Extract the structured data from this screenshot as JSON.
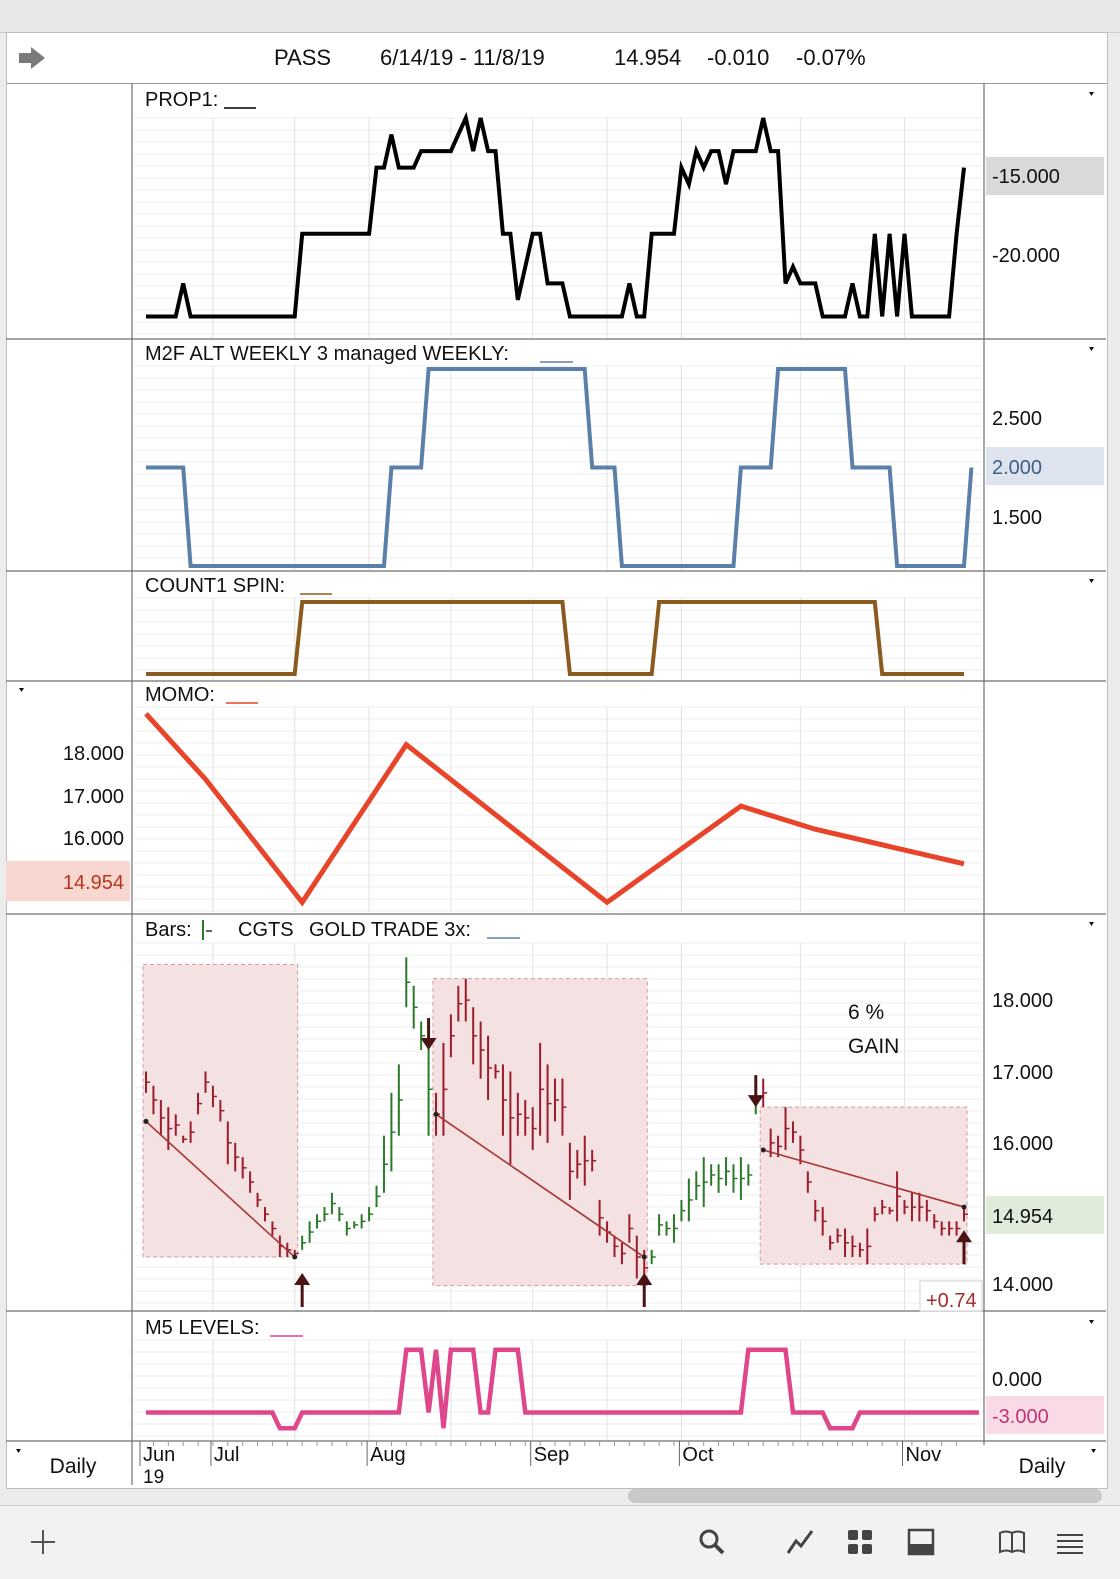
{
  "header": {
    "symbol": "PASS",
    "date_range": "6/14/19 - 11/8/19",
    "last": "14.954",
    "change": "-0.010",
    "change_pct": "-0.07%"
  },
  "footer": {
    "left_period": "Daily",
    "right_period": "Daily",
    "months": [
      "Jun",
      "Jul",
      "Aug",
      "Sep",
      "Oct",
      "Nov"
    ],
    "year": "19"
  },
  "toolbar_icons": [
    "add-icon",
    "search-icon",
    "line-chart-icon",
    "grid-layout-icon",
    "panel-icon",
    "book-icon",
    "list-icon"
  ],
  "colors": {
    "prop1": "#000000",
    "m2f": "#5a7fa8",
    "count1": "#8b5a1f",
    "momo": "#e8442a",
    "bars_up": "#2a7a2a",
    "bars_down": "#9b1c2c",
    "m5": "#e0468c",
    "shade": "#f4e1e1"
  },
  "panels": {
    "prop1": {
      "label": "PROP1:",
      "ticks": [
        "-15.000",
        "-20.000"
      ],
      "value_badge": "-15.000"
    },
    "m2f": {
      "label": "M2F ALT WEEKLY 3 managed WEEKLY:",
      "ticks": [
        "2.500",
        "2.000",
        "1.500"
      ],
      "value_badge": "2.000"
    },
    "count1": {
      "label": "COUNT1 SPIN:"
    },
    "momo": {
      "label": "MOMO:",
      "ticks": [
        "18.000",
        "17.000",
        "16.000"
      ],
      "value_badge": "14.954"
    },
    "bars": {
      "label_prefix": "Bars:",
      "label_symbol": "CGTS",
      "label_name": "GOLD TRADE 3x:",
      "ticks": [
        "18.000",
        "17.000",
        "16.000",
        "14.000"
      ],
      "value_badge": "14.954",
      "annotation_line1": "6 %",
      "annotation_line2": "GAIN",
      "gain_badge": "+0.74"
    },
    "m5": {
      "label": "M5 LEVELS:",
      "ticks": [
        "0.000"
      ],
      "value_badge": "-3.000"
    }
  },
  "chart_data": [
    {
      "type": "line",
      "name": "PROP1",
      "ylim": [
        -25,
        -12
      ],
      "values": [
        -24,
        -24,
        -24,
        -24,
        -24,
        -22,
        -24,
        -24,
        -24,
        -24,
        -24,
        -24,
        -24,
        -24,
        -24,
        -24,
        -24,
        -24,
        -24,
        -24,
        -24,
        -19,
        -19,
        -19,
        -19,
        -19,
        -19,
        -19,
        -19,
        -19,
        -19,
        -15,
        -15,
        -13,
        -15,
        -15,
        -15,
        -14,
        -14,
        -14,
        -14,
        -14,
        -13,
        -12,
        -14,
        -12,
        -14,
        -14,
        -19,
        -19,
        -23,
        -21,
        -19,
        -19,
        -22,
        -22,
        -22,
        -24,
        -24,
        -24,
        -24,
        -24,
        -24,
        -24,
        -24,
        -22,
        -24,
        -24,
        -19,
        -19,
        -19,
        -19,
        -15,
        -16,
        -14,
        -15,
        -14,
        -14,
        -16,
        -14,
        -14,
        -14,
        -14,
        -12,
        -14,
        -14,
        -22,
        -21,
        -22,
        -22,
        -22,
        -24,
        -24,
        -24,
        -24,
        -22,
        -24,
        -24,
        -19,
        -24,
        -19,
        -24,
        -19,
        -24,
        -24,
        -24,
        -24,
        -24,
        -24,
        -19,
        -15
      ]
    },
    {
      "type": "line",
      "name": "M2F ALT WEEKLY 3 managed WEEKLY",
      "ylim": [
        1.0,
        3.0
      ],
      "values": [
        2,
        2,
        2,
        2,
        2,
        2,
        1,
        1,
        1,
        1,
        1,
        1,
        1,
        1,
        1,
        1,
        1,
        1,
        1,
        1,
        1,
        1,
        1,
        1,
        1,
        1,
        1,
        1,
        1,
        1,
        1,
        1,
        1,
        2,
        2,
        2,
        2,
        2,
        3,
        3,
        3,
        3,
        3,
        3,
        3,
        3,
        3,
        3,
        3,
        3,
        3,
        3,
        3,
        3,
        3,
        3,
        3,
        3,
        3,
        3,
        2,
        2,
        2,
        2,
        1,
        1,
        1,
        1,
        1,
        1,
        1,
        1,
        1,
        1,
        1,
        1,
        1,
        1,
        1,
        1,
        2,
        2,
        2,
        2,
        2,
        3,
        3,
        3,
        3,
        3,
        3,
        3,
        3,
        3,
        3,
        2,
        2,
        2,
        2,
        2,
        2,
        1,
        1,
        1,
        1,
        1,
        1,
        1,
        1,
        1,
        1,
        2
      ]
    },
    {
      "type": "line",
      "name": "COUNT1 SPIN",
      "ylim": [
        0,
        1
      ],
      "values": [
        0,
        0,
        0,
        0,
        0,
        0,
        0,
        0,
        0,
        0,
        0,
        0,
        0,
        0,
        0,
        0,
        0,
        0,
        0,
        0,
        0,
        1,
        1,
        1,
        1,
        1,
        1,
        1,
        1,
        1,
        1,
        1,
        1,
        1,
        1,
        1,
        1,
        1,
        1,
        1,
        1,
        1,
        1,
        1,
        1,
        1,
        1,
        1,
        1,
        1,
        1,
        1,
        1,
        1,
        1,
        1,
        1,
        0,
        0,
        0,
        0,
        0,
        0,
        0,
        0,
        0,
        0,
        0,
        0,
        1,
        1,
        1,
        1,
        1,
        1,
        1,
        1,
        1,
        1,
        1,
        1,
        1,
        1,
        1,
        1,
        1,
        1,
        1,
        1,
        1,
        1,
        1,
        1,
        1,
        1,
        1,
        1,
        1,
        1,
        0,
        0,
        0,
        0,
        0,
        0,
        0,
        0,
        0,
        0,
        0,
        0
      ]
    },
    {
      "type": "line",
      "name": "MOMO",
      "ylim": [
        13.8,
        19.0
      ],
      "x": [
        0,
        8,
        21,
        35,
        62,
        80,
        90,
        110
      ],
      "values": [
        18.9,
        17.2,
        14.0,
        18.1,
        14.0,
        16.5,
        15.9,
        15.0
      ]
    },
    {
      "type": "bar",
      "name": "CGTS GOLD TRADE 3x",
      "ylim": [
        13.6,
        18.7
      ],
      "bars": [
        [
          0,
          16.9,
          16.6,
          1
        ],
        [
          1,
          16.7,
          16.3,
          1
        ],
        [
          2,
          16.5,
          16.0,
          1
        ],
        [
          3,
          16.4,
          15.8,
          1
        ],
        [
          4,
          16.3,
          16.0,
          1
        ],
        [
          5,
          16.0,
          15.9,
          1
        ],
        [
          6,
          16.2,
          15.9,
          1
        ],
        [
          7,
          16.6,
          16.3,
          1
        ],
        [
          8,
          16.9,
          16.6,
          1
        ],
        [
          9,
          16.7,
          16.4,
          1
        ],
        [
          10,
          16.5,
          16.2,
          1
        ],
        [
          11,
          16.2,
          15.6,
          1
        ],
        [
          12,
          15.9,
          15.5,
          1
        ],
        [
          13,
          15.7,
          15.4,
          1
        ],
        [
          14,
          15.5,
          15.2,
          1
        ],
        [
          15,
          15.2,
          15.0,
          1
        ],
        [
          16,
          15.0,
          14.8,
          1
        ],
        [
          17,
          14.8,
          14.6,
          1
        ],
        [
          18,
          14.6,
          14.3,
          1
        ],
        [
          19,
          14.5,
          14.3,
          1
        ],
        [
          20,
          14.4,
          14.3,
          1
        ],
        [
          21,
          14.6,
          14.4,
          0
        ],
        [
          22,
          14.8,
          14.5,
          0
        ],
        [
          23,
          14.9,
          14.7,
          0
        ],
        [
          24,
          15.0,
          14.8,
          0
        ],
        [
          25,
          15.2,
          14.9,
          0
        ],
        [
          26,
          15.0,
          14.8,
          0
        ],
        [
          27,
          14.8,
          14.6,
          0
        ],
        [
          28,
          14.8,
          14.7,
          0
        ],
        [
          29,
          14.9,
          14.7,
          0
        ],
        [
          30,
          15.0,
          14.8,
          0
        ],
        [
          31,
          15.3,
          15.0,
          0
        ],
        [
          32,
          16.0,
          15.2,
          0
        ],
        [
          33,
          16.6,
          15.5,
          0
        ],
        [
          34,
          17.0,
          16.0,
          0
        ],
        [
          35,
          18.5,
          17.8,
          0
        ],
        [
          36,
          18.1,
          17.5,
          0
        ],
        [
          37,
          17.6,
          17.2,
          0
        ],
        [
          38,
          17.3,
          16.0,
          0
        ],
        [
          39,
          16.6,
          16.0,
          1
        ],
        [
          40,
          17.3,
          16.0,
          1
        ],
        [
          41,
          17.7,
          17.1,
          1
        ],
        [
          42,
          18.1,
          17.6,
          1
        ],
        [
          43,
          18.2,
          17.6,
          1
        ],
        [
          44,
          17.8,
          17.0,
          1
        ],
        [
          45,
          17.6,
          16.8,
          1
        ],
        [
          46,
          17.4,
          16.5,
          1
        ],
        [
          47,
          17.0,
          16.8,
          1
        ],
        [
          48,
          17.0,
          16.0,
          1
        ],
        [
          49,
          16.9,
          15.6,
          1
        ],
        [
          50,
          16.6,
          16.0,
          1
        ],
        [
          51,
          16.5,
          16.0,
          1
        ],
        [
          52,
          16.4,
          15.8,
          1
        ],
        [
          53,
          17.3,
          16.0,
          1
        ],
        [
          54,
          17.0,
          15.9,
          1
        ],
        [
          55,
          16.8,
          16.2,
          1
        ],
        [
          56,
          16.8,
          16.0,
          1
        ],
        [
          57,
          15.9,
          15.1,
          1
        ],
        [
          58,
          15.8,
          15.4,
          1
        ],
        [
          59,
          16.0,
          15.3,
          1
        ],
        [
          60,
          15.8,
          15.5,
          1
        ],
        [
          61,
          15.1,
          14.6,
          1
        ],
        [
          62,
          14.8,
          14.5,
          1
        ],
        [
          63,
          14.6,
          14.3,
          1
        ],
        [
          64,
          14.5,
          14.2,
          1
        ],
        [
          65,
          14.9,
          14.5,
          1
        ],
        [
          66,
          14.6,
          14.0,
          1
        ],
        [
          67,
          14.4,
          13.9,
          1
        ],
        [
          68,
          14.4,
          14.2,
          0
        ],
        [
          69,
          14.9,
          14.6,
          0
        ],
        [
          70,
          14.8,
          14.6,
          0
        ],
        [
          71,
          14.9,
          14.5,
          0
        ],
        [
          72,
          15.1,
          14.8,
          0
        ],
        [
          73,
          15.4,
          14.8,
          0
        ],
        [
          74,
          15.5,
          15.1,
          0
        ],
        [
          75,
          15.7,
          15.0,
          0
        ],
        [
          76,
          15.6,
          15.3,
          0
        ],
        [
          77,
          15.6,
          15.2,
          0
        ],
        [
          78,
          15.7,
          15.3,
          0
        ],
        [
          79,
          15.6,
          15.2,
          0
        ],
        [
          80,
          15.7,
          15.1,
          0
        ],
        [
          81,
          15.6,
          15.3,
          0
        ],
        [
          82,
          16.8,
          16.3,
          0
        ],
        [
          83,
          16.8,
          16.4,
          1
        ],
        [
          84,
          16.1,
          15.7,
          1
        ],
        [
          85,
          16.0,
          15.7,
          1
        ],
        [
          86,
          16.4,
          15.8,
          1
        ],
        [
          87,
          16.2,
          15.9,
          1
        ],
        [
          88,
          16.0,
          15.6,
          1
        ],
        [
          89,
          15.5,
          15.2,
          1
        ],
        [
          90,
          15.1,
          14.8,
          1
        ],
        [
          91,
          15.0,
          14.6,
          1
        ],
        [
          92,
          14.6,
          14.4,
          1
        ],
        [
          93,
          14.7,
          14.5,
          1
        ],
        [
          94,
          14.7,
          14.3,
          1
        ],
        [
          95,
          14.6,
          14.3,
          1
        ],
        [
          96,
          14.5,
          14.3,
          1
        ],
        [
          97,
          14.7,
          14.2,
          1
        ],
        [
          98,
          15.0,
          14.8,
          1
        ],
        [
          99,
          15.1,
          14.9,
          1
        ],
        [
          100,
          15.0,
          14.9,
          1
        ],
        [
          101,
          15.5,
          14.8,
          1
        ],
        [
          102,
          15.1,
          14.9,
          1
        ],
        [
          103,
          15.2,
          14.8,
          1
        ],
        [
          104,
          15.2,
          14.8,
          1
        ],
        [
          105,
          15.1,
          14.8,
          1
        ],
        [
          106,
          14.9,
          14.7,
          1
        ],
        [
          107,
          14.8,
          14.6,
          1
        ],
        [
          108,
          14.8,
          14.6,
          1
        ],
        [
          109,
          14.8,
          14.6,
          1
        ],
        [
          110,
          15.0,
          14.8,
          1
        ]
      ],
      "trend_lines": [
        [
          [
            0,
            16.2
          ],
          [
            20,
            14.3
          ]
        ],
        [
          [
            39,
            16.3
          ],
          [
            67,
            14.3
          ]
        ],
        [
          [
            83,
            15.8
          ],
          [
            110,
            15.0
          ]
        ]
      ],
      "boxes": [
        {
          "x": [
            0,
            20
          ],
          "y": [
            14.3,
            18.4
          ]
        },
        {
          "x": [
            39,
            67
          ],
          "y": [
            13.9,
            18.2
          ]
        },
        {
          "x": [
            83,
            110
          ],
          "y": [
            14.2,
            16.4
          ]
        }
      ],
      "down_arrows": [
        [
          38,
          17.2
        ],
        [
          82,
          16.4
        ]
      ],
      "up_arrows": [
        [
          21,
          14.3
        ],
        [
          67,
          14.3
        ],
        [
          110,
          14.9
        ]
      ]
    },
    {
      "type": "line",
      "name": "M5 LEVELS",
      "ylim": [
        -4.5,
        1.5
      ],
      "values": [
        -3,
        -3,
        -3,
        -3,
        -3,
        -3,
        -3,
        -3,
        -3,
        -3,
        -3,
        -3,
        -3,
        -3,
        -3,
        -3,
        -3,
        -3,
        -4,
        -4,
        -4,
        -3,
        -3,
        -3,
        -3,
        -3,
        -3,
        -3,
        -3,
        -3,
        -3,
        -3,
        -3,
        -3,
        -3,
        1,
        1,
        1,
        -3,
        1,
        -4,
        1,
        1,
        1,
        1,
        -3,
        -3,
        1,
        1,
        1,
        1,
        -3,
        -3,
        -3,
        -3,
        -3,
        -3,
        -3,
        -3,
        -3,
        -3,
        -3,
        -3,
        -3,
        -3,
        -3,
        -3,
        -3,
        -3,
        -3,
        -3,
        -3,
        -3,
        -3,
        -3,
        -3,
        -3,
        -3,
        -3,
        -3,
        -3,
        1,
        1,
        1,
        1,
        1,
        1,
        -3,
        -3,
        -3,
        -3,
        -3,
        -4,
        -4,
        -4,
        -4,
        -3,
        -3,
        -3,
        -3,
        -3,
        -3,
        -3,
        -3,
        -3,
        -3,
        -3,
        -3,
        -3,
        -3,
        -3,
        -3,
        -3
      ]
    }
  ]
}
